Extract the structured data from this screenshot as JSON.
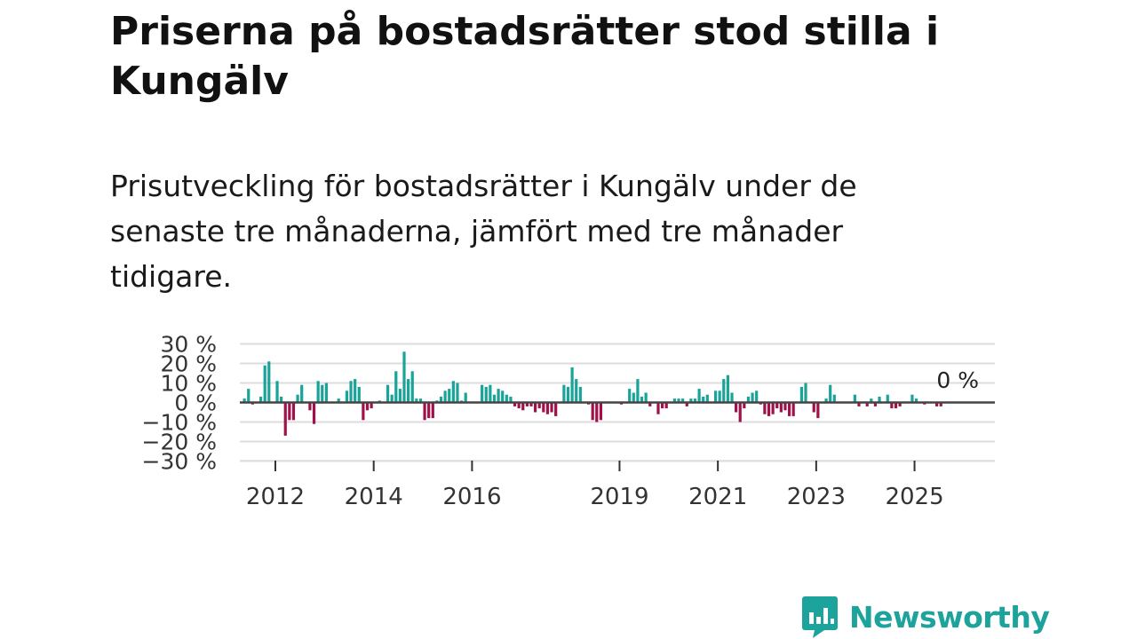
{
  "title": "Priserna på bostadsrätter stod stilla i Kungälv",
  "subtitle": "Prisutveckling för bostadsrätter i Kungälv under de senaste tre månaderna, jämfört med tre månader tidigare.",
  "brand": {
    "name": "Newsworthy",
    "color": "#1ca39b"
  },
  "chart_data": {
    "type": "bar",
    "title": "",
    "xlabel": "",
    "ylabel": "",
    "unit": "%",
    "ylim": [
      -30,
      30
    ],
    "yticks": [
      30,
      20,
      10,
      0,
      -10,
      -20,
      -30
    ],
    "ytick_labels": [
      "30 %",
      "20 %",
      "10 %",
      "0 %",
      "−10 %",
      "−20 %",
      "−30 %"
    ],
    "xticks": [
      2012,
      2014,
      2016,
      2019,
      2021,
      2023,
      2025
    ],
    "x_start": 2011.37,
    "x_step": 0.08333,
    "last_value_label": "0 %",
    "colors": {
      "positive": "#1aa398",
      "negative": "#a0114a",
      "zero_line": "#444444",
      "grid": "#dddddd"
    },
    "values": [
      2,
      7,
      -1,
      0,
      3,
      19,
      21,
      0,
      11,
      3,
      -17,
      -9,
      -9,
      4,
      9,
      0,
      -4,
      -11,
      11,
      9,
      10,
      0,
      0,
      2,
      0,
      6,
      11,
      12,
      8,
      -9,
      -4,
      -3,
      0,
      1,
      0,
      9,
      4,
      16,
      7,
      26,
      12,
      16,
      2,
      2,
      -9,
      -8,
      -8,
      1,
      3,
      6,
      7,
      11,
      10,
      1,
      5,
      0,
      0,
      0,
      9,
      8,
      9,
      4,
      7,
      6,
      4,
      3,
      -2,
      -3,
      -4,
      -2,
      -2,
      -5,
      -3,
      -5,
      -6,
      -5,
      -7,
      0,
      9,
      8,
      18,
      12,
      8,
      0,
      -1,
      -9,
      -10,
      -9,
      0,
      0,
      0,
      0,
      -1,
      0,
      7,
      5,
      12,
      3,
      5,
      -2,
      0,
      -6,
      -3,
      -3,
      0,
      2,
      2,
      2,
      -2,
      2,
      2,
      7,
      3,
      4,
      0,
      6,
      6,
      12,
      14,
      5,
      -5,
      -10,
      -3,
      3,
      5,
      6,
      -1,
      -6,
      -7,
      -6,
      -3,
      -5,
      -4,
      -7,
      -7,
      0,
      8,
      10,
      0,
      -5,
      -8,
      0,
      2,
      9,
      4,
      0,
      0,
      0,
      0,
      4,
      -2,
      0,
      -2,
      2,
      -2,
      3,
      0,
      4,
      -3,
      -3,
      -2,
      0,
      0,
      4,
      2,
      0,
      -1,
      0,
      0,
      -2,
      -2,
      0
    ]
  }
}
